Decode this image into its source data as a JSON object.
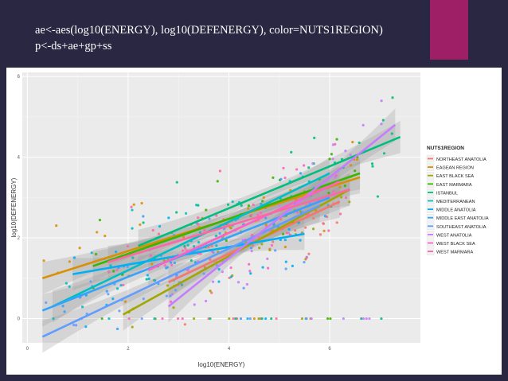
{
  "slide": {
    "code_lines": [
      "ae<-aes(log10(ENERGY), log10(DEFENERGY), color=NUTS1REGION)",
      "p<-ds+ae+gp+ss"
    ],
    "accent_color": "#9e1f66",
    "background_color": "#2a2742"
  },
  "chart_data": {
    "type": "scatter",
    "title": "",
    "xlabel": "log10(ENERGY)",
    "ylabel": "log10(DEFENERGY)",
    "xlim": [
      -0.1,
      7.8
    ],
    "ylim": [
      -0.6,
      6.1
    ],
    "x_ticks": [
      0,
      2,
      4,
      6
    ],
    "y_ticks": [
      0,
      2,
      4,
      6
    ],
    "grid": true,
    "panel_background": "#ebebeb",
    "legend_title": "NUTS1REGION",
    "legend_position": "right",
    "smooth_method": "linear fit with confidence band",
    "series": [
      {
        "name": "NORTHEAST ANATOLIA",
        "color": "#F8766D",
        "fit": {
          "x": [
            2.8,
            6.2
          ],
          "y": [
            0.9,
            2.9
          ]
        }
      },
      {
        "name": "EAGEAN REGION",
        "color": "#D89000",
        "fit": {
          "x": [
            0.3,
            6.6
          ],
          "y": [
            1.0,
            3.5
          ]
        }
      },
      {
        "name": "EAST BLACK SEA",
        "color": "#A3A500",
        "fit": {
          "x": [
            1.9,
            6.4
          ],
          "y": [
            0.1,
            3.2
          ]
        }
      },
      {
        "name": "EAST MARMARA",
        "color": "#39B600",
        "fit": {
          "x": [
            1.3,
            6.6
          ],
          "y": [
            1.3,
            3.6
          ]
        }
      },
      {
        "name": "ISTANBUL",
        "color": "#00BF7D",
        "fit": {
          "x": [
            2.2,
            7.4
          ],
          "y": [
            1.8,
            4.5
          ]
        }
      },
      {
        "name": "MEDITERRANEAN",
        "color": "#00BFC4",
        "fit": {
          "x": [
            0.5,
            6.0
          ],
          "y": [
            0.3,
            3.6
          ]
        }
      },
      {
        "name": "MIDDLE ANATOLIA",
        "color": "#00B0F6",
        "fit": {
          "x": [
            0.9,
            5.5
          ],
          "y": [
            1.1,
            2.1
          ]
        }
      },
      {
        "name": "MIDDLE EAST ANATOLIA",
        "color": "#35A2FF",
        "fit": {
          "x": [
            0.3,
            6.0
          ],
          "y": [
            0.2,
            3.0
          ]
        }
      },
      {
        "name": "SOUTHEAST ANATOLIA",
        "color": "#619CFF",
        "fit": {
          "x": [
            0.3,
            5.8
          ],
          "y": [
            -0.45,
            2.8
          ]
        }
      },
      {
        "name": "WEST ANATOLIA",
        "color": "#C77CFF",
        "fit": {
          "x": [
            2.8,
            7.3
          ],
          "y": [
            0.3,
            4.8
          ]
        }
      },
      {
        "name": "WEST BLACK SEA",
        "color": "#FF61C3",
        "fit": {
          "x": [
            2.4,
            6.2
          ],
          "y": [
            1.2,
            3.4
          ]
        }
      },
      {
        "name": "WEST MARMARA",
        "color": "#FF67A4",
        "fit": {
          "x": [
            1.6,
            6.4
          ],
          "y": [
            1.4,
            3.2
          ]
        }
      }
    ]
  }
}
